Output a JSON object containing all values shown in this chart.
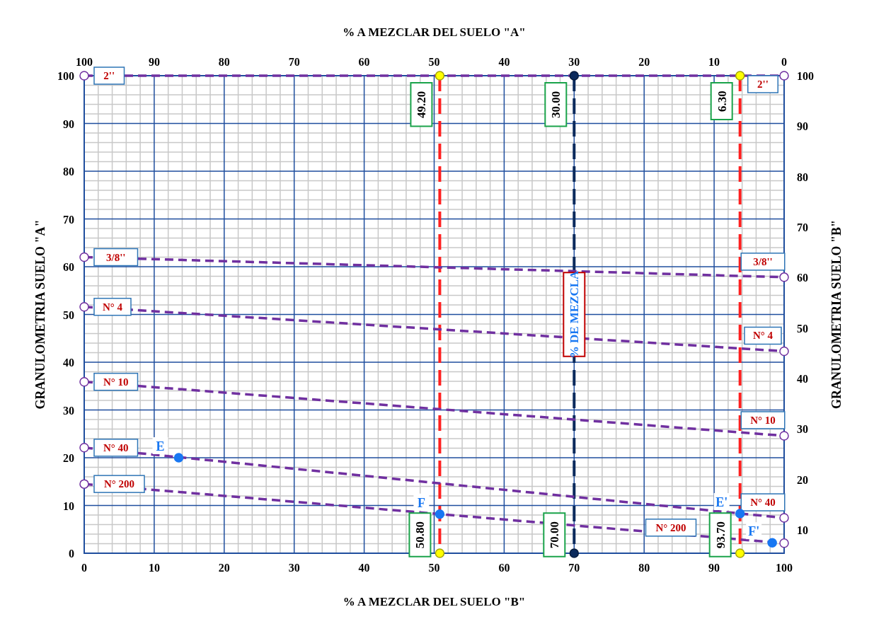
{
  "chart_data": {
    "type": "line",
    "xlabel": "% A MEZCLAR DEL SUELO \"B\"",
    "x2label": "% A MEZCLAR DEL SUELO \"A\"",
    "ylabel": "GRANULOMETRIA SUELO  \"A\"",
    "y2label": "GRANULOMETRIA SUELO  \"B\"",
    "xlim": [
      0,
      100
    ],
    "xticks": [
      0,
      10,
      20,
      30,
      40,
      50,
      60,
      70,
      80,
      90,
      100
    ],
    "x2lim": [
      100,
      0
    ],
    "x2ticks": [
      100,
      90,
      80,
      70,
      60,
      50,
      40,
      30,
      20,
      10,
      0
    ],
    "ylim": [
      0,
      100
    ],
    "yticks": [
      0,
      10,
      20,
      30,
      40,
      50,
      60,
      70,
      80,
      90,
      100
    ],
    "y2lim": [
      5.4,
      100
    ],
    "y2ticks": [
      10,
      20,
      30,
      40,
      50,
      60,
      70,
      80,
      90,
      100
    ],
    "grid": true,
    "marker": "circle",
    "line_style": "dashed",
    "series": [
      {
        "name": "2''",
        "color": "#7030a0",
        "x": [
          0,
          100
        ],
        "values": [
          100,
          100
        ]
      },
      {
        "name": "3/8''",
        "color": "#7030a0",
        "x": [
          0,
          100
        ],
        "values": [
          62.0,
          57.8
        ]
      },
      {
        "name": "N° 4",
        "color": "#7030a0",
        "x": [
          0,
          100
        ],
        "values": [
          51.6,
          42.3
        ]
      },
      {
        "name": "N° 10",
        "color": "#7030a0",
        "x": [
          0,
          100
        ],
        "values": [
          35.9,
          24.6
        ]
      },
      {
        "name": "N° 40",
        "color": "#7030a0",
        "x": [
          0,
          100
        ],
        "values": [
          22.1,
          7.4
        ]
      },
      {
        "name": "N° 200",
        "color": "#7030a0",
        "x": [
          0,
          100
        ],
        "values": [
          14.5,
          2.1
        ]
      },
      {
        "type": "scatter",
        "color": "#1877f2",
        "x": [
          13.5,
          50.8,
          93.7,
          98.3
        ],
        "values": [
          20,
          8.2,
          8.3,
          2.2
        ]
      },
      {
        "type": "scatter",
        "colors": [
          "#ffff00",
          "#ffff00",
          "#0b2a5c",
          "#0b2a5c",
          "#ffff00",
          "#ffff00"
        ],
        "x": [
          50.8,
          50.8,
          70,
          70,
          93.7,
          93.7
        ],
        "values": [
          100,
          0,
          100,
          0,
          100,
          0
        ]
      }
    ],
    "ref_lines": [
      {
        "axis": "x",
        "value": 50.8,
        "label": "50.80",
        "color": "#ff2020",
        "line_style": "dashed"
      },
      {
        "axis": "x",
        "value": 70,
        "label": "70.00",
        "color": "#0b2a5c",
        "line_style": "dashed"
      },
      {
        "axis": "x",
        "value": 93.7,
        "label": "93.70",
        "color": "#ff2020",
        "line_style": "dashed"
      }
    ],
    "annotations": [
      {
        "text": "E",
        "x": 13.5,
        "y": 20
      },
      {
        "text": "F",
        "x": 50.8,
        "y": 8.2
      },
      {
        "text": "E'",
        "x": 93.7,
        "y": 8.3
      },
      {
        "text": "F'",
        "x": 98.3,
        "y": 2.2
      },
      {
        "text": "49.20",
        "x": 50.8,
        "y": 100
      },
      {
        "text": "30.00",
        "x": 70,
        "y": 100
      },
      {
        "text": "6.30",
        "x": 93.7,
        "y": 100
      },
      {
        "text": "% DE MEZCLA",
        "x": 70,
        "y": 50
      }
    ]
  }
}
